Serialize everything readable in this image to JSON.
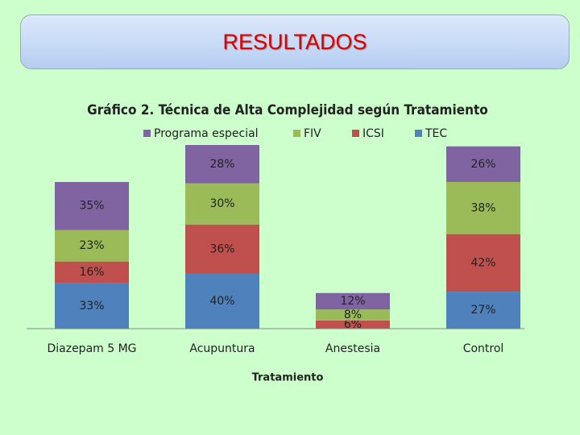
{
  "header": {
    "title": "RESULTADOS"
  },
  "chart_data": {
    "type": "stacked_bar",
    "title": "Gráfico 2. Técnica de Alta Complejidad según Tratamiento",
    "xlabel": "Tratamiento",
    "categories": [
      "Diazepam 5 MG",
      "Acupuntura",
      "Anestesia",
      "Control"
    ],
    "series": [
      {
        "name": "Programa especial",
        "color": "#8064a2",
        "values": [
          35,
          28,
          12,
          26
        ],
        "value_labels": [
          "35%",
          "28%",
          "12%",
          "26%"
        ]
      },
      {
        "name": "FIV",
        "color": "#9bbb59",
        "values": [
          23,
          30,
          8,
          38
        ],
        "value_labels": [
          "23%",
          "30%",
          "8%",
          "38%"
        ]
      },
      {
        "name": "ICSI",
        "color": "#c0504d",
        "values": [
          16,
          36,
          6,
          42
        ],
        "value_labels": [
          "16%",
          "36%",
          "6%",
          "42%"
        ]
      },
      {
        "name": "TEC",
        "color": "#4f81bd",
        "values": [
          33,
          40,
          null,
          27
        ],
        "value_labels": [
          "33%",
          "40%",
          null,
          "27%"
        ]
      }
    ],
    "legend": "top"
  }
}
